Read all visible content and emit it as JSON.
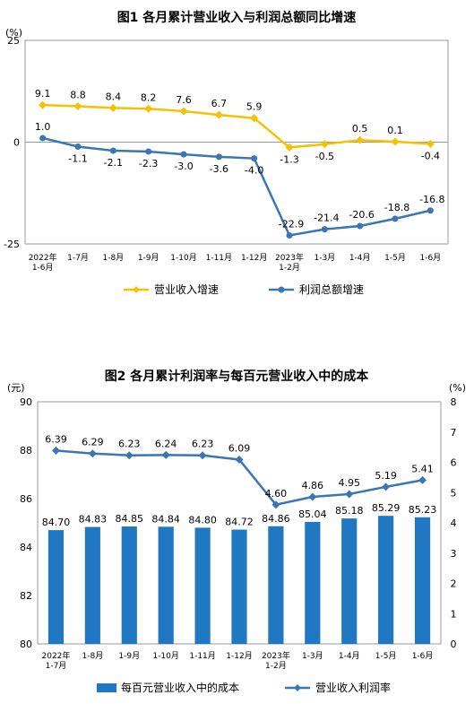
{
  "chart_data": [
    {
      "type": "line",
      "title": "图1 各月累计营业收入与利润总额同比增速",
      "ylabel": "(%)",
      "ylim": [
        -25,
        25
      ],
      "yticks": [
        25,
        0,
        -25
      ],
      "categories": [
        [
          "2022年",
          "1-6月"
        ],
        [
          "1-7月"
        ],
        [
          "1-8月"
        ],
        [
          "1-9月"
        ],
        [
          "1-10月"
        ],
        [
          "1-11月"
        ],
        [
          "1-12月"
        ],
        [
          "2023年",
          "1-2月"
        ],
        [
          "1-3月"
        ],
        [
          "1-4月"
        ],
        [
          "1-5月"
        ],
        [
          "1-6月"
        ]
      ],
      "series": [
        {
          "name": "营业收入增速",
          "color": "#F5C100",
          "marker": "diamond",
          "values": [
            9.1,
            8.8,
            8.4,
            8.2,
            7.6,
            6.7,
            5.9,
            -1.3,
            -0.5,
            0.5,
            0.1,
            -0.4
          ],
          "labels": [
            "9.1",
            "8.8",
            "8.4",
            "8.2",
            "7.6",
            "6.7",
            "5.9",
            "-1.3",
            "-0.5",
            "0.5",
            "0.1",
            "-0.4"
          ]
        },
        {
          "name": "利润总额增速",
          "color": "#3A75B4",
          "marker": "circle",
          "values": [
            1.0,
            -1.1,
            -2.1,
            -2.3,
            -3.0,
            -3.6,
            -4.0,
            -22.9,
            -21.4,
            -20.6,
            -18.8,
            -16.8
          ],
          "labels": [
            "1.0",
            "-1.1",
            "-2.1",
            "-2.3",
            "-3.0",
            "-3.6",
            "-4.0",
            "-22.9",
            "-21.4",
            "-20.6",
            "-18.8",
            "-16.8"
          ]
        }
      ],
      "grid": false,
      "legend": "bottom"
    },
    {
      "type": "bar",
      "title": "图2 各月累计利润率与每百元营业收入中的成本",
      "ylabel": "(元)",
      "y2label": "(%)",
      "ylim": [
        80,
        90
      ],
      "yticks": [
        90,
        88,
        86,
        84,
        82,
        80
      ],
      "y2lim": [
        0,
        8
      ],
      "y2ticks": [
        8,
        7,
        6,
        5,
        4,
        3,
        2,
        1,
        0
      ],
      "categories": [
        [
          "2022年",
          "1-7月"
        ],
        [
          "1-8月"
        ],
        [
          "1-9月"
        ],
        [
          "1-10月"
        ],
        [
          "1-11月"
        ],
        [
          "1-12月"
        ],
        [
          "2023年",
          "1-2月"
        ],
        [
          "1-3月"
        ],
        [
          "1-4月"
        ],
        [
          "1-5月"
        ],
        [
          "1-6月"
        ]
      ],
      "series": [
        {
          "name": "每百元营业收入中的成本",
          "kind": "bar",
          "axis": "left",
          "color": "#1F78C1",
          "values": [
            84.7,
            84.83,
            84.85,
            84.84,
            84.8,
            84.72,
            84.86,
            85.04,
            85.18,
            85.29,
            85.23
          ],
          "labels": [
            "84.70",
            "84.83",
            "84.85",
            "84.84",
            "84.80",
            "84.72",
            "84.86",
            "85.04",
            "85.18",
            "85.29",
            "85.23"
          ]
        },
        {
          "name": "营业收入利润率",
          "kind": "line",
          "axis": "right",
          "color": "#3A75B4",
          "marker": "diamond",
          "values": [
            6.39,
            6.29,
            6.23,
            6.24,
            6.23,
            6.09,
            4.6,
            4.86,
            4.95,
            5.19,
            5.41
          ],
          "labels": [
            "6.39",
            "6.29",
            "6.23",
            "6.24",
            "6.23",
            "6.09",
            "4.60",
            "4.86",
            "4.95",
            "5.19",
            "5.41"
          ]
        }
      ],
      "grid": false,
      "legend": "bottom"
    }
  ]
}
